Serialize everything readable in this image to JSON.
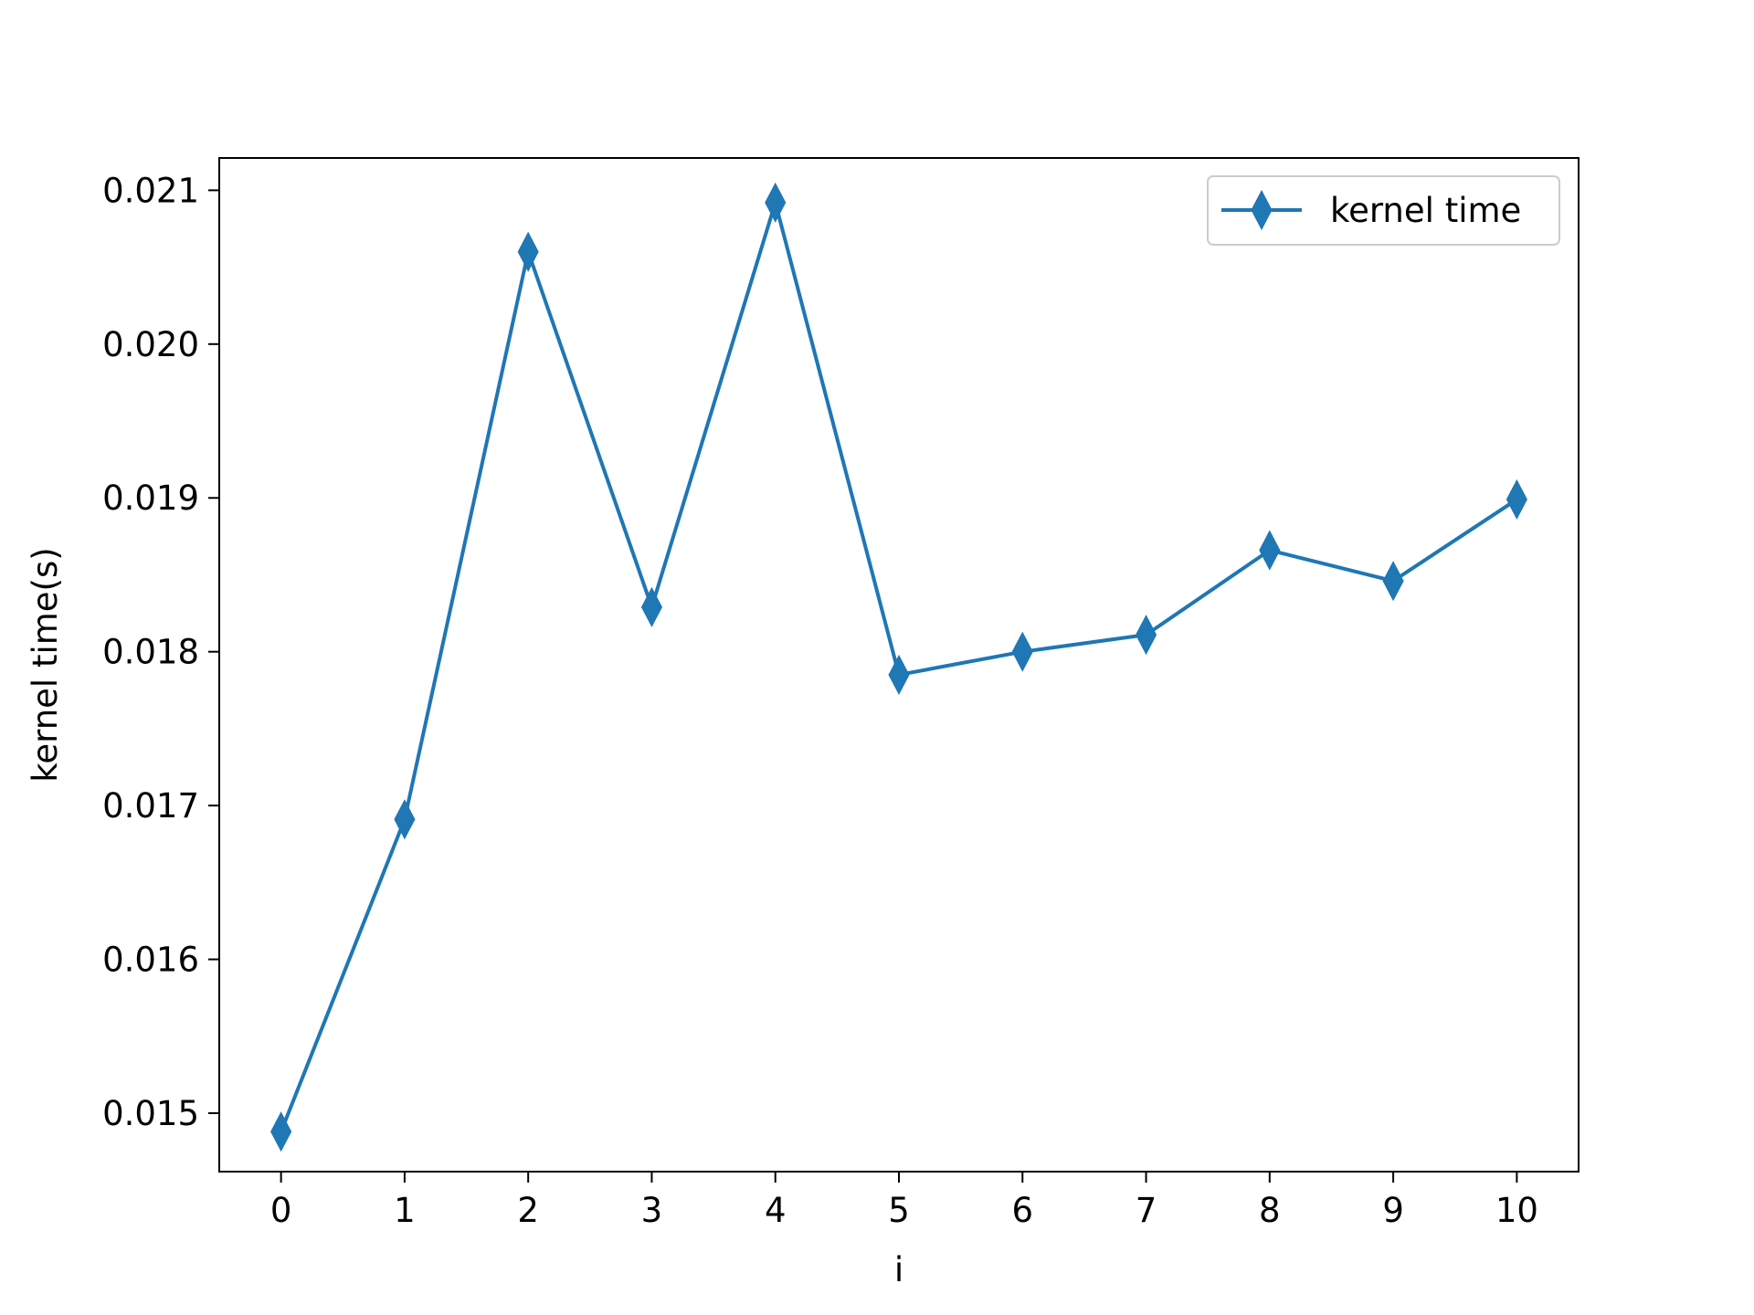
{
  "chart_data": {
    "type": "line",
    "xlabel": "i",
    "ylabel": "kernel time(s)",
    "x": [
      0,
      1,
      2,
      3,
      4,
      5,
      6,
      7,
      8,
      9,
      10
    ],
    "series": [
      {
        "name": "kernel time",
        "values": [
          0.01488,
          0.01691,
          0.0206,
          0.01829,
          0.02092,
          0.01785,
          0.018,
          0.01811,
          0.01866,
          0.01846,
          0.01899
        ],
        "color": "#1f77b4",
        "marker": "thin-diamond"
      }
    ],
    "xticks": [
      "0",
      "1",
      "2",
      "3",
      "4",
      "5",
      "6",
      "7",
      "8",
      "9",
      "10"
    ],
    "yticks": [
      "0.015",
      "0.016",
      "0.017",
      "0.018",
      "0.019",
      "0.020",
      "0.021"
    ],
    "xlim": [
      -0.5,
      10.5
    ],
    "ylim": [
      0.01462,
      0.02121
    ],
    "grid": false,
    "legend_position": "top-right"
  }
}
